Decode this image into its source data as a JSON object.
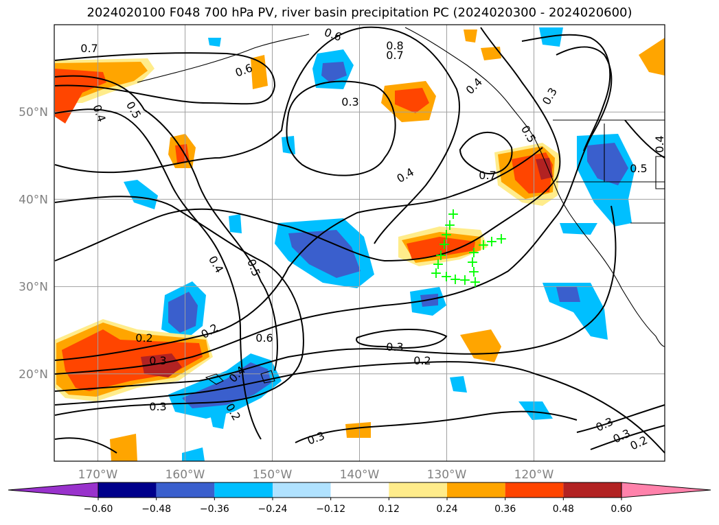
{
  "title": "2024020100 F048 700 hPa PV, river basin precipitation PC (2024020300 - 2024020600)",
  "map": {
    "lon_labels": [
      "170°W",
      "160°W",
      "150°W",
      "140°W",
      "130°W",
      "120°W"
    ],
    "lat_labels": [
      "50°N",
      "40°N",
      "30°N",
      "20°N"
    ],
    "lon_values": [
      -170,
      -160,
      -150,
      -140,
      -130,
      -120
    ],
    "lat_values": [
      50,
      40,
      30,
      20
    ],
    "extent": {
      "lon_min": -175,
      "lon_max": -105,
      "lat_min": 10,
      "lat_max": 60
    }
  },
  "contour_labels": [
    "0.7",
    "0.6",
    "0.8",
    "0.7",
    "0.6",
    "0.4",
    "0.5",
    "0.3",
    "0.3",
    "0.5",
    "0.4",
    "0.5",
    "0.4",
    "0.4",
    "0.7",
    "0.4",
    "0.5",
    "0.2",
    "0.2",
    "0.3",
    "0.6",
    "0.3",
    "0.4",
    "0.2",
    "0.3",
    "0.2",
    "0.3",
    "0.3",
    "0.3",
    "0.2"
  ],
  "colorbar": {
    "ticks": [
      "−0.60",
      "−0.48",
      "−0.36",
      "−0.24",
      "−0.12",
      "0.12",
      "0.24",
      "0.36",
      "0.48",
      "0.60"
    ],
    "colors": [
      "#9932cc",
      "#00008b",
      "#3a5fcd",
      "#00bfff",
      "#b0e2ff",
      "#ffffff",
      "#ffec8b",
      "#ffa500",
      "#ff4500",
      "#b22222",
      "#ff82ab"
    ]
  },
  "markers": {
    "symbol": "+",
    "color": "#00ff00"
  }
}
